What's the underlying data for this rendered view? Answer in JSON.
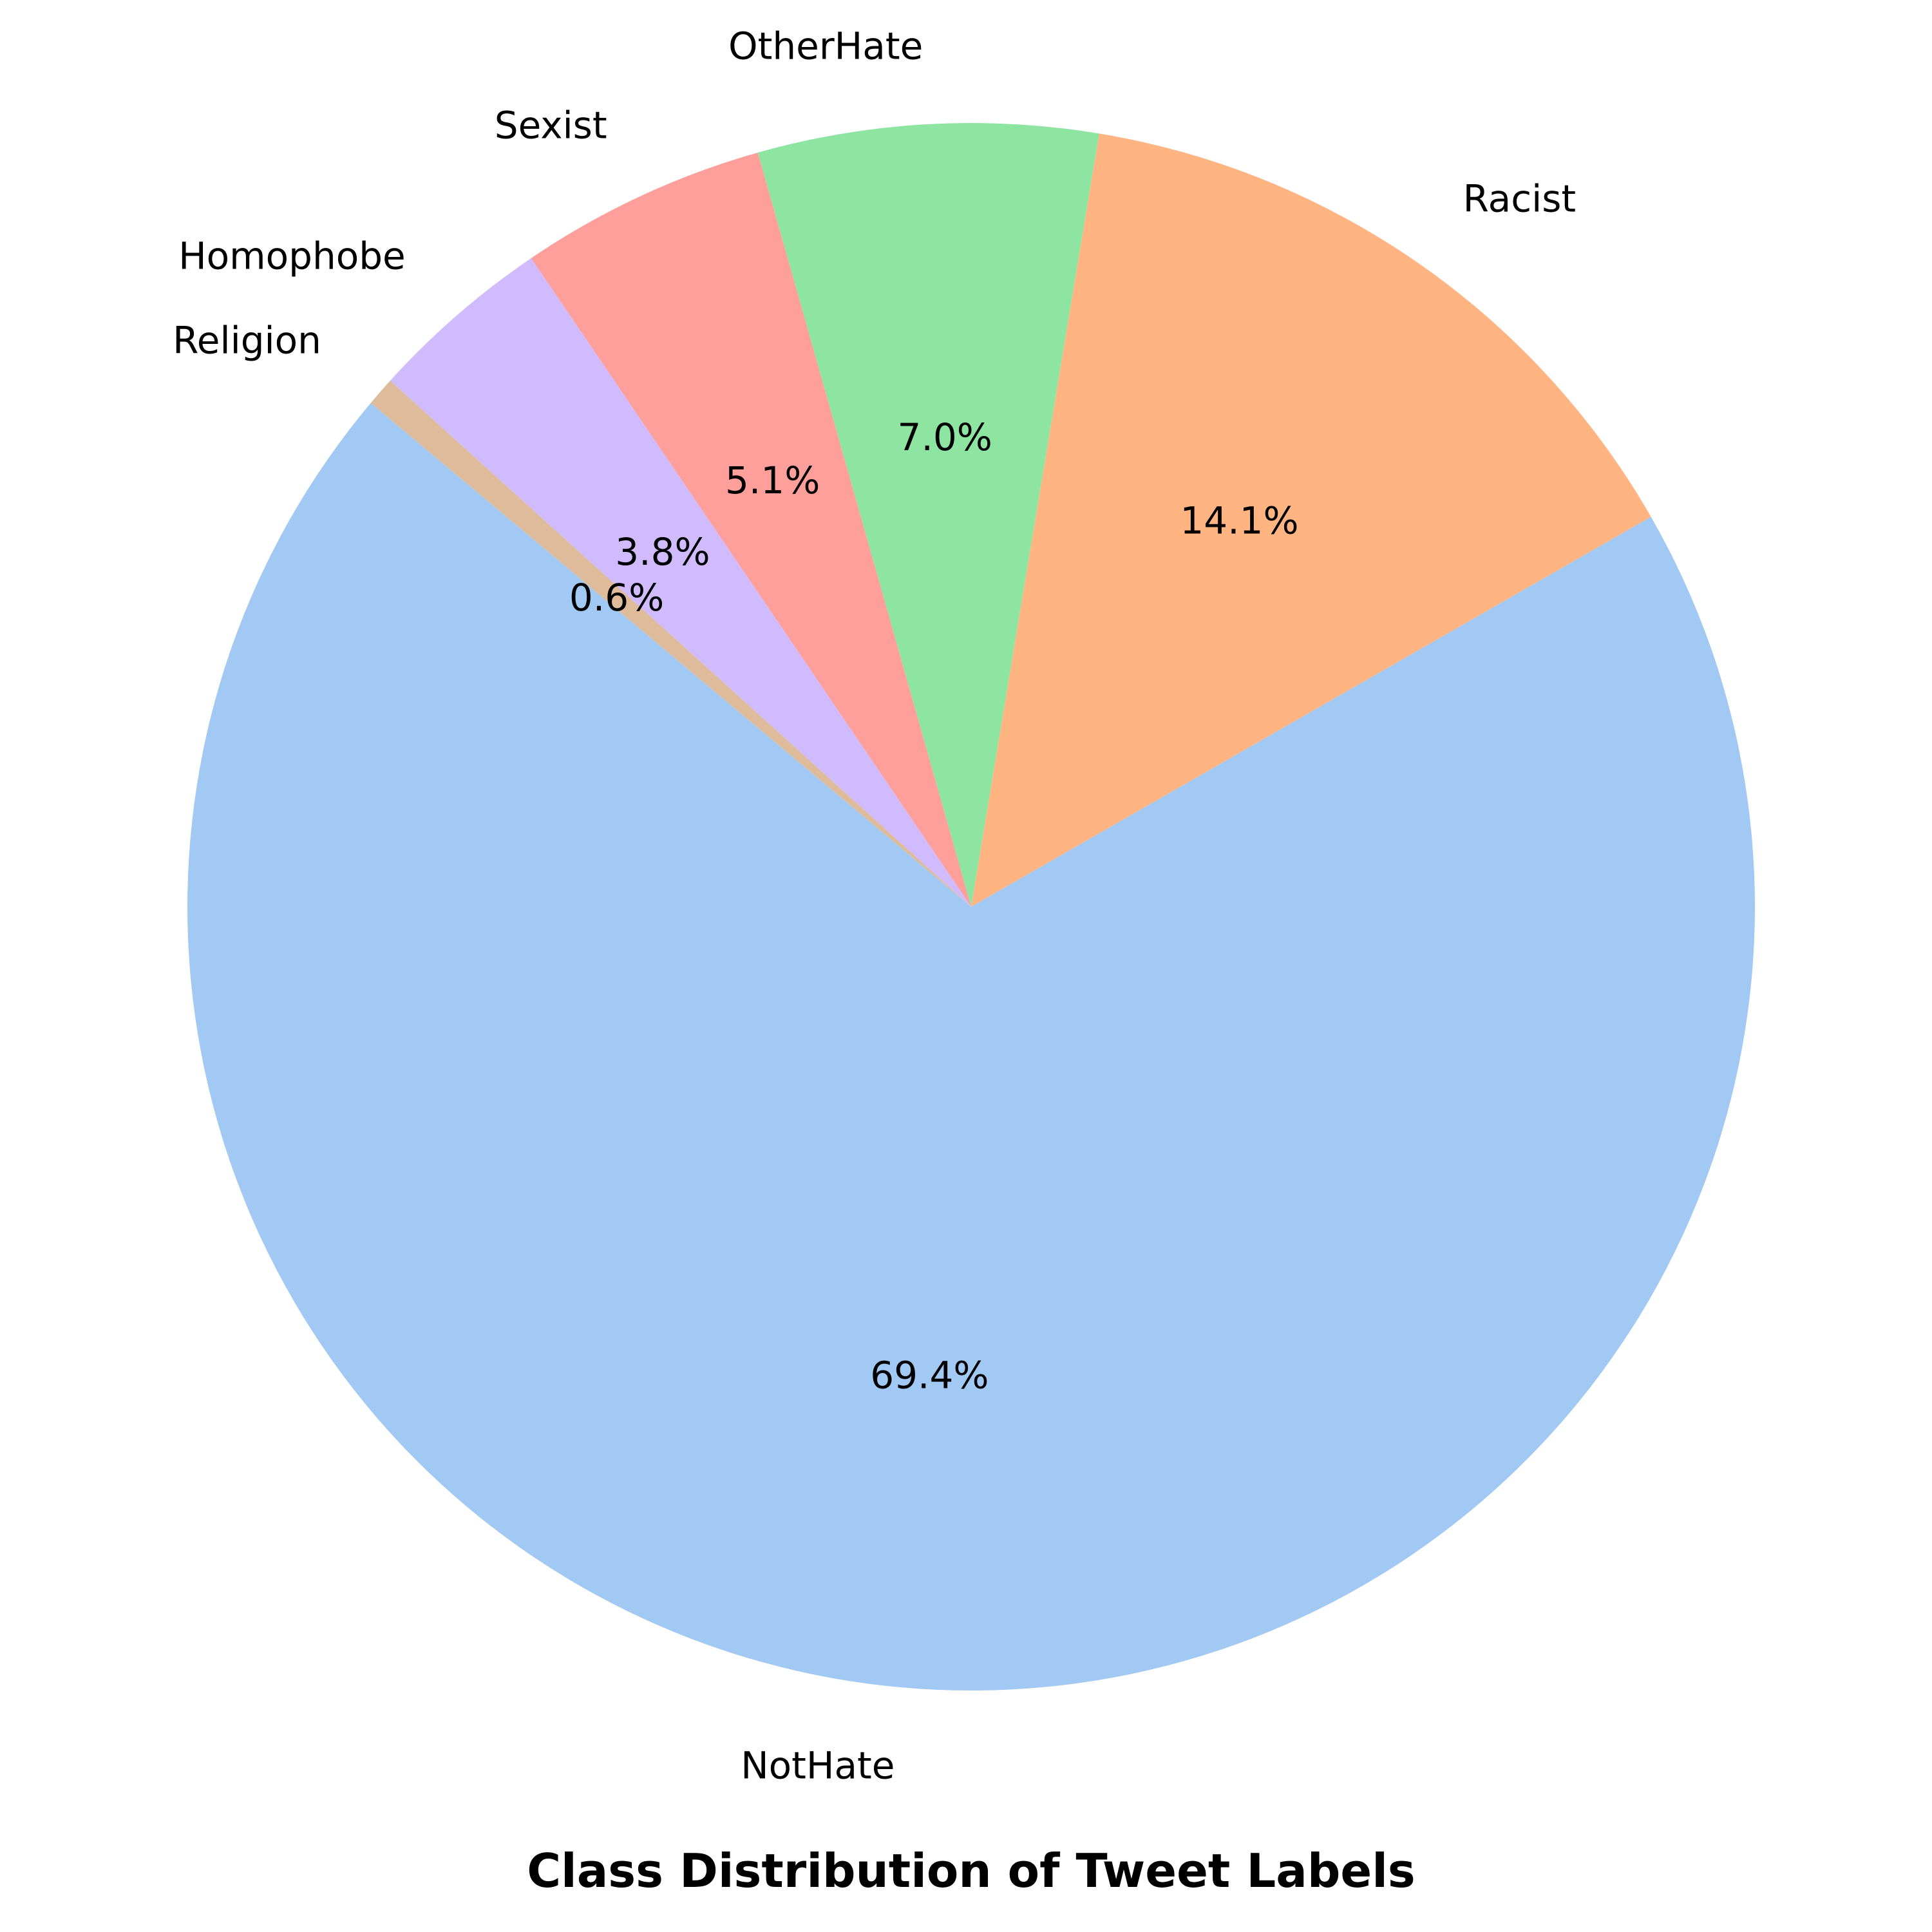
{
  "chart_data": {
    "type": "pie",
    "title": "Class Distribution of Tweet Labels",
    "start_angle_deg": 140,
    "direction": "counterclockwise",
    "slices": [
      {
        "label": "NotHate",
        "value": 69.4,
        "pct_label": "69.4%",
        "color": "#a1c9f4"
      },
      {
        "label": "Racist",
        "value": 14.1,
        "pct_label": "14.1%",
        "color": "#ffb482"
      },
      {
        "label": "OtherHate",
        "value": 7.0,
        "pct_label": "7.0%",
        "color": "#8de5a1"
      },
      {
        "label": "Sexist",
        "value": 5.1,
        "pct_label": "5.1%",
        "color": "#ff9f9b"
      },
      {
        "label": "Homophobe",
        "value": 3.8,
        "pct_label": "3.8%",
        "color": "#d0bbff"
      },
      {
        "label": "Religion",
        "value": 0.6,
        "pct_label": "0.6%",
        "color": "#debb9b"
      }
    ]
  }
}
